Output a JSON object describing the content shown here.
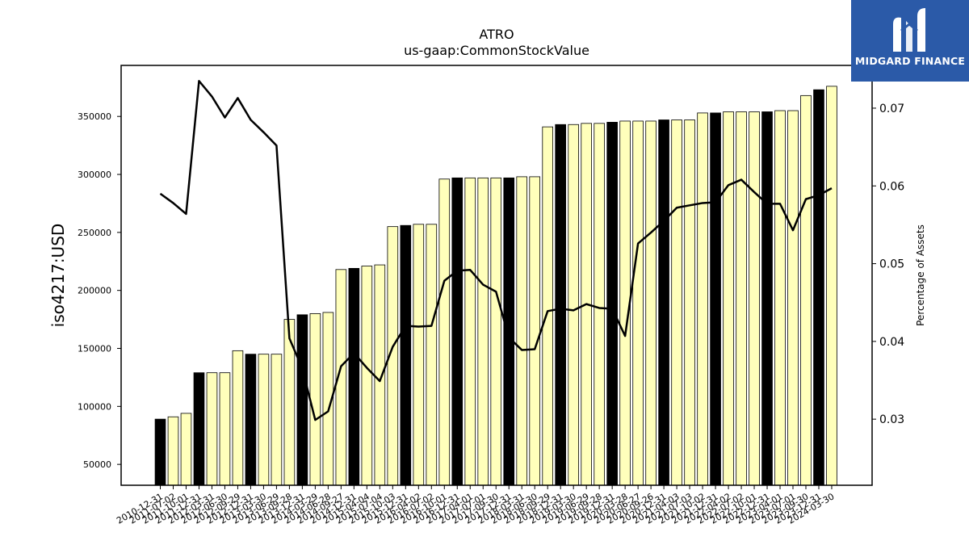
{
  "chart_data": {
    "type": "bar+line",
    "title": "ATRO",
    "subtitle": "us-gaap:CommonStockValue",
    "ylabel_left": "iso4217:USD",
    "ylabel_right": "Percentage of Assets",
    "ylim_left": [
      32000,
      394000
    ],
    "ylim_right": [
      0.0215,
      0.0755
    ],
    "yticks_left": [
      50000,
      100000,
      150000,
      200000,
      250000,
      300000,
      350000
    ],
    "yticks_right": [
      0.03,
      0.04,
      0.05,
      0.06,
      0.07
    ],
    "x_labels": [
      "2010-12-31",
      "2011-07-02",
      "2011-10-01",
      "2011-12-31",
      "2012-03-31",
      "2012-06-30",
      "2012-09-29",
      "2012-12-31",
      "2013-03-30",
      "2013-06-29",
      "2013-09-28",
      "2013-12-31",
      "2014-03-29",
      "2014-06-28",
      "2014-09-27",
      "2014-12-31",
      "2015-04-04",
      "2015-07-04",
      "2015-10-03",
      "2015-12-31",
      "2016-04-02",
      "2016-07-02",
      "2016-10-01",
      "2016-12-31",
      "2017-04-01",
      "2017-07-01",
      "2017-09-30",
      "2017-12-31",
      "2018-03-31",
      "2018-06-30",
      "2018-09-29",
      "2018-12-31",
      "2019-03-30",
      "2019-06-29",
      "2019-09-28",
      "2019-12-31",
      "2020-03-28",
      "2020-06-27",
      "2020-09-26",
      "2020-12-31",
      "2021-04-03",
      "2021-07-03",
      "2021-10-02",
      "2021-12-31",
      "2022-04-02",
      "2022-07-02",
      "2022-10-01",
      "2022-12-31",
      "2023-04-01",
      "2023-07-01",
      "2023-09-30",
      "2023-12-31",
      "2024-03-30"
    ],
    "bar_values": [
      89000,
      91000,
      94000,
      129000,
      129000,
      129000,
      148000,
      145000,
      145000,
      145000,
      175000,
      179000,
      180000,
      181000,
      218000,
      219000,
      221000,
      222000,
      255000,
      256000,
      257000,
      257000,
      296000,
      297000,
      297000,
      297000,
      297000,
      297000,
      298000,
      298000,
      341000,
      343000,
      343000,
      344000,
      344000,
      345000,
      346000,
      346000,
      346000,
      347000,
      347000,
      347000,
      353000,
      353000,
      354000,
      354000,
      354000,
      354000,
      355000,
      355000,
      368000,
      373000,
      376000
    ],
    "bar_highlight": [
      true,
      false,
      false,
      true,
      false,
      false,
      false,
      true,
      false,
      false,
      false,
      true,
      false,
      false,
      false,
      true,
      false,
      false,
      false,
      true,
      false,
      false,
      false,
      true,
      false,
      false,
      false,
      true,
      false,
      false,
      false,
      true,
      false,
      false,
      false,
      true,
      false,
      false,
      false,
      true,
      false,
      false,
      false,
      true,
      false,
      false,
      false,
      true,
      false,
      false,
      false,
      true,
      false
    ],
    "line_values": [
      0.059,
      0.0578,
      0.0564,
      0.0735,
      0.0715,
      0.0688,
      0.0713,
      0.0685,
      0.0669,
      0.0652,
      0.0404,
      0.0365,
      0.0299,
      0.031,
      0.0368,
      0.0385,
      0.0366,
      0.0349,
      0.0393,
      0.042,
      0.0419,
      0.042,
      0.0478,
      0.0491,
      0.0492,
      0.0473,
      0.0464,
      0.0405,
      0.0389,
      0.039,
      0.0439,
      0.0442,
      0.044,
      0.0448,
      0.0443,
      0.0442,
      0.0407,
      0.0526,
      0.054,
      0.0555,
      0.0572,
      0.0575,
      0.0578,
      0.0579,
      0.0601,
      0.0608,
      0.0592,
      0.0577,
      0.0577,
      0.0543,
      0.0583,
      0.0588,
      0.0597
    ],
    "colors": {
      "bar_fill": "#ffffbb",
      "bar_highlight_fill": "#000000",
      "bar_stroke": "#000000",
      "line": "#000000"
    }
  },
  "logo": {
    "text": "MIDGARD FINANCE",
    "background": "#2b5aa8"
  }
}
